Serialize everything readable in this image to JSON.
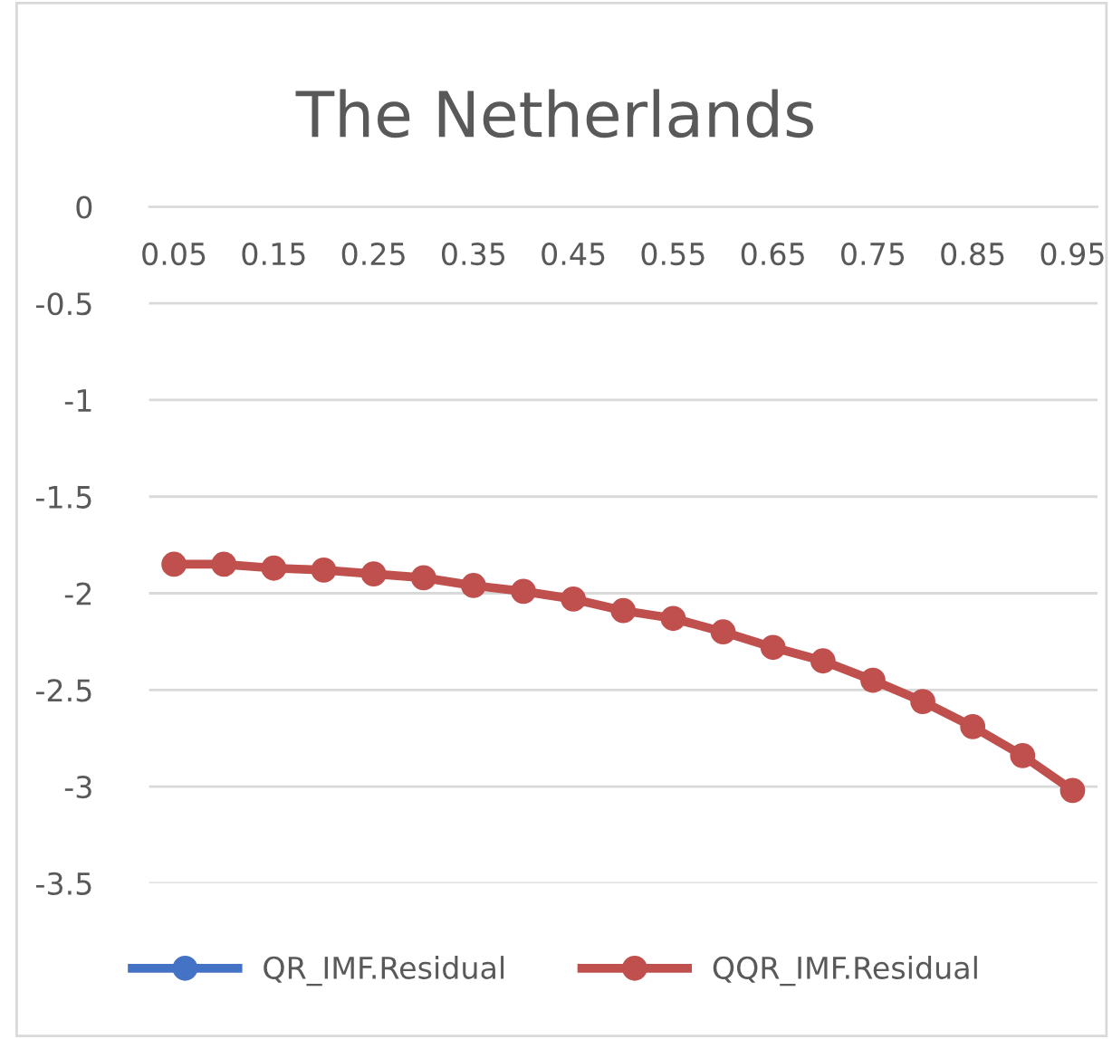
{
  "chart_data": {
    "type": "line",
    "title": "The Netherlands",
    "categories": [
      "0.05",
      null,
      "0.15",
      null,
      "0.25",
      null,
      "0.35",
      null,
      "0.45",
      null,
      "0.55",
      null,
      "0.65",
      null,
      "0.75",
      null,
      "0.85",
      null,
      "0.95"
    ],
    "series": [
      {
        "name": "QR_IMF.Residual",
        "color": "#4472c4",
        "values": [
          null,
          null,
          null,
          null,
          null,
          null,
          null,
          null,
          null,
          null,
          null,
          null,
          null,
          null,
          null,
          null,
          null,
          null,
          null
        ]
      },
      {
        "name": "QQR_IMF.Residual",
        "color": "#c0504d",
        "values": [
          -1.85,
          -1.85,
          -1.87,
          -1.88,
          -1.9,
          -1.92,
          -1.96,
          -1.99,
          -2.03,
          -2.09,
          -2.13,
          -2.2,
          -2.28,
          -2.35,
          -2.45,
          -2.56,
          -2.69,
          -2.84,
          -3.02
        ]
      }
    ],
    "ylim": [
      -3.5,
      0
    ],
    "yticks": [
      0,
      -0.5,
      -1,
      -1.5,
      -2,
      -2.5,
      -3,
      -3.5
    ],
    "grid": "y",
    "legend": "bottom",
    "marker": "circle",
    "line_style": "solid"
  }
}
